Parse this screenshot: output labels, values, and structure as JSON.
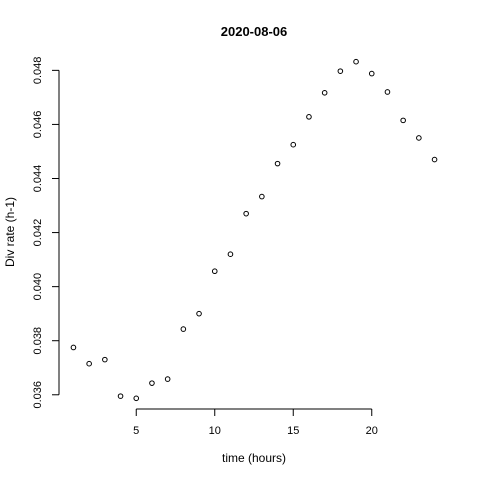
{
  "chart_data": {
    "type": "scatter",
    "title": "2020-08-06",
    "xlabel": "time (hours)",
    "ylabel": "Div rate (h-1)",
    "x": [
      1,
      2,
      3,
      4,
      5,
      6,
      7,
      8,
      9,
      10,
      11,
      12,
      13,
      14,
      15,
      16,
      17,
      18,
      19,
      20,
      21,
      22,
      23,
      24
    ],
    "y": [
      0.03775,
      0.03715,
      0.0373,
      0.03595,
      0.03587,
      0.03643,
      0.03658,
      0.03843,
      0.039,
      0.04057,
      0.0412,
      0.0427,
      0.04333,
      0.04455,
      0.04525,
      0.04628,
      0.04717,
      0.04797,
      0.04832,
      0.04788,
      0.0472,
      0.04615,
      0.0455,
      0.0447
    ],
    "xlim": [
      0.08,
      24.92
    ],
    "ylim": [
      0.03577,
      0.04842
    ],
    "xticks": [
      5,
      10,
      15,
      20
    ],
    "xtick_labels": [
      "5",
      "10",
      "15",
      "20"
    ],
    "yticks": [
      0.036,
      0.038,
      0.04,
      0.042,
      0.044,
      0.046,
      0.048
    ],
    "ytick_labels": [
      "0.036",
      "0.038",
      "0.040",
      "0.042",
      "0.044",
      "0.046",
      "0.048"
    ],
    "grid": false,
    "legend": "none"
  }
}
